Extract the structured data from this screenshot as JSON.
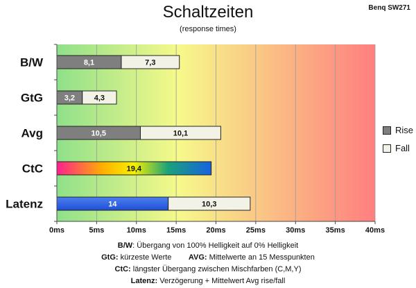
{
  "header": {
    "title": "Schaltzeiten",
    "subtitle": "(response times)",
    "brand": "Benq SW271"
  },
  "legend": {
    "rise": {
      "label": "Rise",
      "color": "#7f7f7f"
    },
    "fall": {
      "label": "Fall",
      "color": "#f2f2e6"
    }
  },
  "chart_data": {
    "type": "bar",
    "orientation": "horizontal",
    "stacked": true,
    "title": "Schaltzeiten",
    "subtitle": "(response times)",
    "xlim": [
      0,
      40
    ],
    "x_ticks": [
      "0ms",
      "5ms",
      "10ms",
      "15ms",
      "20ms",
      "25ms",
      "30ms",
      "35ms",
      "40ms"
    ],
    "grid": true,
    "legend_position": "right",
    "background_gradient": [
      "#8fe08a",
      "#f6f98a",
      "#ff7f7f"
    ],
    "categories": [
      "B/W",
      "GtG",
      "Avg",
      "CtC",
      "Latenz"
    ],
    "series": [
      {
        "name": "Rise",
        "values": [
          8.1,
          3.2,
          10.5,
          null,
          null
        ],
        "color": "#7f7f7f"
      },
      {
        "name": "Fall",
        "values": [
          7.3,
          4.3,
          10.1,
          null,
          10.3
        ],
        "color": "#f2f2e6"
      }
    ],
    "ctc_value": 19.4,
    "latency_value": 14,
    "value_labels": {
      "B/W": [
        "8,1",
        "7,3"
      ],
      "GtG": [
        "3,2",
        "4,3"
      ],
      "Avg": [
        "10,5",
        "10,1"
      ],
      "CtC": [
        "19,4"
      ],
      "Latenz": [
        "14",
        "10,3"
      ]
    }
  },
  "notes": {
    "bw_key": "B/W",
    "bw_text": ":  Übergang von 100% Helligkeit auf 0% Helligkeit",
    "gtg_key": "GtG:",
    "gtg_text": " kürzeste  Werte",
    "avg_key": "AVG:",
    "avg_text": " Mittelwerte  an 15 Messpunkten",
    "ctc_key": "CtC:",
    "ctc_text": " längster Übergang  zwischen Mischfarben  (C,M,Y)",
    "lat_key": "Latenz:",
    "lat_text": " Verzögerung  + Mittelwert Avg rise/fall"
  }
}
